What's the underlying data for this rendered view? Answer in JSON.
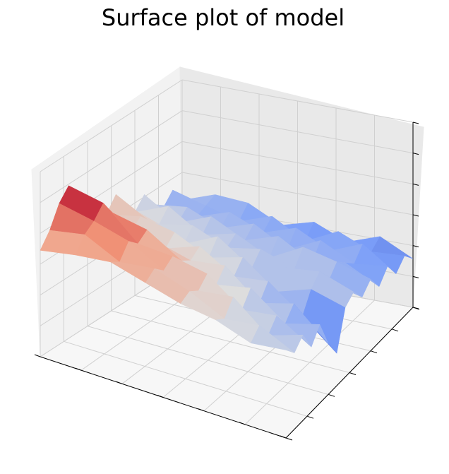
{
  "chart_data": {
    "type": "surface",
    "title": "Surface plot of model",
    "colormap": [
      "#3b4cc0",
      "#7b9ff9",
      "#dddddd",
      "#f49a7b",
      "#b40426"
    ],
    "zlim": [
      -4,
      4
    ],
    "z": [
      [
        0.6,
        1.2,
        2.1,
        2.6,
        2.0,
        1.1,
        0.4,
        0.3,
        0.9,
        0.2,
        -0.4,
        0.1,
        -0.6,
        -1.0,
        -0.5,
        -1.2
      ],
      [
        0.9,
        1.5,
        1.8,
        2.3,
        1.6,
        0.8,
        0.2,
        0.6,
        0.1,
        -0.3,
        0.2,
        -0.8,
        -0.4,
        -1.1,
        -0.9,
        -0.7
      ],
      [
        1.1,
        0.8,
        1.4,
        1.0,
        1.3,
        0.5,
        -0.1,
        0.3,
        -0.5,
        0.0,
        -0.7,
        -0.2,
        -1.0,
        -0.6,
        -1.3,
        -0.8
      ],
      [
        0.7,
        1.0,
        0.6,
        0.9,
        0.4,
        0.1,
        0.4,
        -0.4,
        0.2,
        -0.6,
        -0.3,
        -0.9,
        -0.5,
        -1.2,
        -0.8,
        -1.5
      ],
      [
        0.3,
        0.5,
        0.2,
        0.6,
        -0.2,
        0.3,
        -0.5,
        0.0,
        -0.8,
        -0.3,
        -1.0,
        -0.4,
        -1.3,
        -0.7,
        -1.6,
        -1.1
      ],
      [
        0.1,
        -0.2,
        0.4,
        -0.5,
        0.1,
        -0.9,
        -0.3,
        -1.1,
        -0.4,
        -0.8,
        -0.2,
        -1.2,
        -0.6,
        -1.4,
        -0.9,
        -1.7
      ],
      [
        -0.4,
        0.0,
        -0.8,
        -0.3,
        -1.0,
        -0.5,
        -1.4,
        -0.6,
        -0.2,
        -1.0,
        -0.5,
        -0.9,
        -1.3,
        -0.8,
        -1.5,
        -1.2
      ],
      [
        -0.2,
        -0.7,
        -0.3,
        -1.2,
        -0.6,
        -1.8,
        -2.6,
        -1.0,
        -0.7,
        -1.3,
        -0.9,
        -1.6,
        -1.1,
        -1.8,
        -1.4,
        -1.9
      ]
    ]
  }
}
